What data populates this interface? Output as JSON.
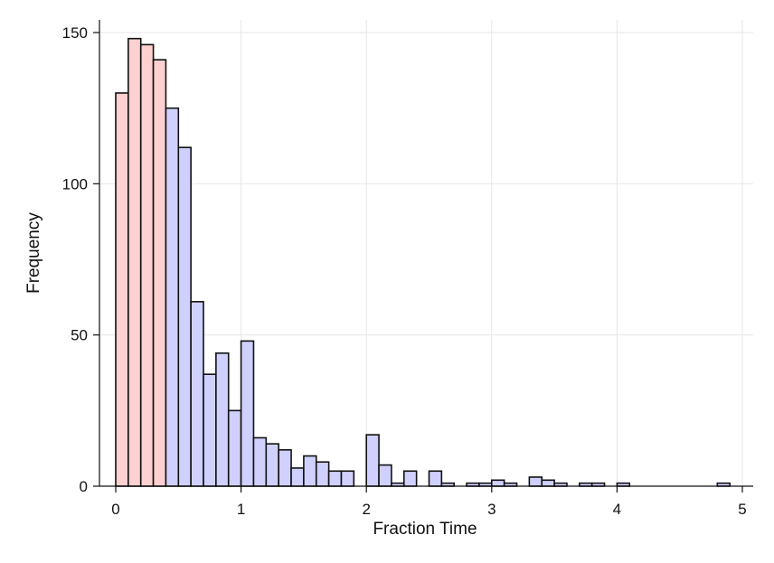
{
  "chart_data": {
    "type": "bar",
    "title": "",
    "xlabel": "Fraction Time",
    "ylabel": "Frequency",
    "xlim": [
      0,
      5
    ],
    "ylim": [
      0,
      150
    ],
    "bin_width": 0.1,
    "grid": true,
    "xticks": [
      0,
      1,
      2,
      3,
      4,
      5
    ],
    "yticks": [
      0,
      50,
      100,
      150
    ],
    "colors": {
      "pink": "#ffd0d0",
      "blue": "#d0d0ff",
      "outline": "#111111"
    },
    "bins": [
      {
        "x": 0.0,
        "y": 130,
        "color": "pink"
      },
      {
        "x": 0.1,
        "y": 148,
        "color": "pink"
      },
      {
        "x": 0.2,
        "y": 146,
        "color": "pink"
      },
      {
        "x": 0.3,
        "y": 141,
        "color": "pink"
      },
      {
        "x": 0.4,
        "y": 125,
        "color": "blue"
      },
      {
        "x": 0.5,
        "y": 112,
        "color": "blue"
      },
      {
        "x": 0.6,
        "y": 61,
        "color": "blue"
      },
      {
        "x": 0.7,
        "y": 37,
        "color": "blue"
      },
      {
        "x": 0.8,
        "y": 44,
        "color": "blue"
      },
      {
        "x": 0.9,
        "y": 25,
        "color": "blue"
      },
      {
        "x": 1.0,
        "y": 48,
        "color": "blue"
      },
      {
        "x": 1.1,
        "y": 16,
        "color": "blue"
      },
      {
        "x": 1.2,
        "y": 14,
        "color": "blue"
      },
      {
        "x": 1.3,
        "y": 12,
        "color": "blue"
      },
      {
        "x": 1.4,
        "y": 6,
        "color": "blue"
      },
      {
        "x": 1.5,
        "y": 10,
        "color": "blue"
      },
      {
        "x": 1.6,
        "y": 8,
        "color": "blue"
      },
      {
        "x": 1.7,
        "y": 5,
        "color": "blue"
      },
      {
        "x": 1.8,
        "y": 5,
        "color": "blue"
      },
      {
        "x": 2.0,
        "y": 17,
        "color": "blue"
      },
      {
        "x": 2.1,
        "y": 7,
        "color": "blue"
      },
      {
        "x": 2.2,
        "y": 1,
        "color": "blue"
      },
      {
        "x": 2.3,
        "y": 5,
        "color": "blue"
      },
      {
        "x": 2.5,
        "y": 5,
        "color": "blue"
      },
      {
        "x": 2.6,
        "y": 1,
        "color": "blue"
      },
      {
        "x": 2.8,
        "y": 1,
        "color": "blue"
      },
      {
        "x": 2.9,
        "y": 1,
        "color": "blue"
      },
      {
        "x": 3.0,
        "y": 2,
        "color": "blue"
      },
      {
        "x": 3.1,
        "y": 1,
        "color": "blue"
      },
      {
        "x": 3.3,
        "y": 3,
        "color": "blue"
      },
      {
        "x": 3.4,
        "y": 2,
        "color": "blue"
      },
      {
        "x": 3.5,
        "y": 1,
        "color": "blue"
      },
      {
        "x": 3.7,
        "y": 1,
        "color": "blue"
      },
      {
        "x": 3.8,
        "y": 1,
        "color": "blue"
      },
      {
        "x": 4.0,
        "y": 1,
        "color": "blue"
      },
      {
        "x": 4.8,
        "y": 1,
        "color": "blue"
      }
    ]
  }
}
